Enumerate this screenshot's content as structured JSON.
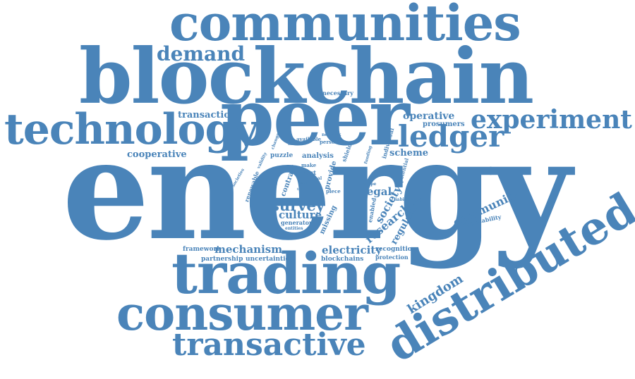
{
  "accent_color": "#4a84b9",
  "words": {
    "energy": "energy",
    "blockchain": "blockchain",
    "peer": "peer",
    "communities": "communities",
    "technology": "technology",
    "trading": "trading",
    "consumer": "consumer",
    "distributed": "distributed",
    "transactive": "transactive",
    "experiment": "experiment",
    "ledger": "ledger",
    "demand": "demand",
    "survey": "survey",
    "culture": "culture",
    "mechanism": "mechanism",
    "electricity": "electricity",
    "research": "research",
    "society": "society",
    "legal": "legal",
    "regulation": "regulation",
    "community": "community",
    "kingdom": "kingdom",
    "scheme": "scheme",
    "operative": "operative",
    "prosumers": "prosumers",
    "transaction": "transaction",
    "cooperative": "cooperative",
    "necessary": "necessary",
    "framework": "framework",
    "partnership": "partnership",
    "uncertainties": "uncertainties",
    "blockchains": "blockchains",
    "recognition": "recognition",
    "protection": "protection",
    "applicability": "applicability",
    "generator": "generator",
    "entities": "entities",
    "missing": "missing",
    "enabled": "enabled",
    "puzzle": "puzzle",
    "analysis": "analysis",
    "make": "make",
    "smart": "smart",
    "local": "local",
    "piece": "piece",
    "provide": "provide",
    "contract": "contract",
    "renewable": "renewable",
    "available": "available",
    "network": "network",
    "personal": "personal",
    "shield": "shield",
    "funding": "funding",
    "individual": "individual",
    "potential": "potential",
    "liability": "liability",
    "europe": "europe",
    "limited": "limited",
    "change": "change",
    "validity": "validity",
    "societies": "societies",
    "group": "group",
    "social": "social",
    "talk": "talk"
  }
}
